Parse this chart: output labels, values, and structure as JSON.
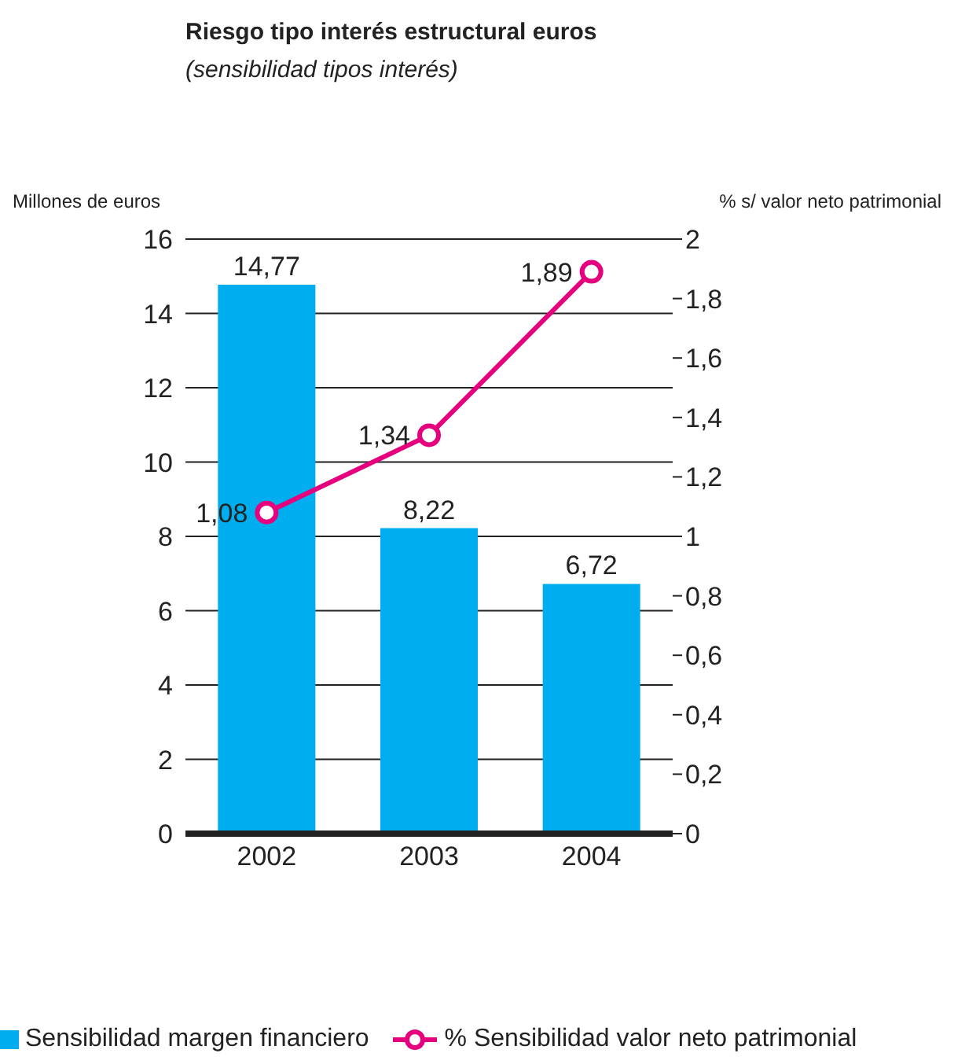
{
  "chart_data": {
    "type": "bar",
    "title": "Riesgo tipo interés estructural euros",
    "subtitle": "(sensibilidad tipos interés)",
    "ylabel": "Millones de euros",
    "y2label": "% s/ valor neto patrimonial",
    "categories": [
      "2002",
      "2003",
      "2004"
    ],
    "series": [
      {
        "name": "Sensibilidad margen financiero",
        "color": "#00aeef",
        "values": [
          14.77,
          8.22,
          6.72
        ],
        "value_labels": [
          "14,77",
          "8,22",
          "6,72"
        ]
      },
      {
        "name": "% Sensibilidad valor neto patrimonial",
        "type": "line",
        "axis": "y2",
        "color": "#e5007e",
        "marker": "circle",
        "values": [
          1.08,
          1.34,
          1.89
        ],
        "value_labels": [
          "1,08",
          "1,34",
          "1,89"
        ]
      }
    ],
    "ylim": [
      0,
      16
    ],
    "yticks": [
      0,
      2,
      4,
      6,
      8,
      10,
      12,
      14,
      16
    ],
    "y2lim": [
      0,
      2
    ],
    "y2ticks": [
      0,
      {
        "value": 0.2,
        "label": "0,2"
      },
      {
        "value": 0.4,
        "label": "0,4"
      },
      {
        "value": 0.6,
        "label": "0,6"
      },
      {
        "value": 0.8,
        "label": "0,8"
      },
      1,
      {
        "value": 1.2,
        "label": "1,2"
      },
      {
        "value": 1.4,
        "label": "1,4"
      },
      {
        "value": 1.6,
        "label": "1,6"
      },
      {
        "value": 1.8,
        "label": "1,8"
      },
      2
    ],
    "grid": "y",
    "legend": "bottom"
  }
}
